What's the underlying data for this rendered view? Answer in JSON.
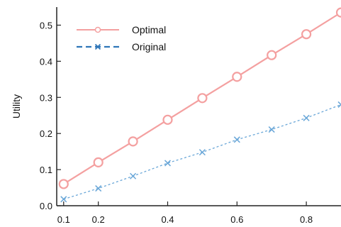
{
  "chart_data": {
    "type": "line",
    "title": "",
    "xlabel": "",
    "ylabel": "Utility",
    "xlim": [
      0.08,
      0.9
    ],
    "ylim": [
      0.0,
      0.55
    ],
    "xticks": [
      0.1,
      0.2,
      0.4,
      0.6,
      0.8
    ],
    "xtick_labels": [
      "0.1",
      "0.2",
      "0.4",
      "0.6",
      "0.8"
    ],
    "yticks": [
      0.0,
      0.1,
      0.2,
      0.3,
      0.4,
      0.5
    ],
    "ytick_labels": [
      "0.0",
      "0.1",
      "0.2",
      "0.3",
      "0.4",
      "0.5"
    ],
    "grid": false,
    "legend_position": "top-left",
    "x": [
      0.1,
      0.2,
      0.3,
      0.4,
      0.5,
      0.6,
      0.7,
      0.8,
      0.9
    ],
    "series": [
      {
        "name": "Optimal",
        "values": [
          0.06,
          0.12,
          0.178,
          0.238,
          0.298,
          0.357,
          0.417,
          0.475,
          0.535
        ],
        "color": "#f4a0a0",
        "marker": "circle",
        "line_style": "solid"
      },
      {
        "name": "Original",
        "values": [
          0.018,
          0.048,
          0.082,
          0.118,
          0.148,
          0.183,
          0.211,
          0.243,
          0.28
        ],
        "color": "#6aa7d8",
        "marker": "x",
        "line_style": "dashed"
      }
    ]
  }
}
